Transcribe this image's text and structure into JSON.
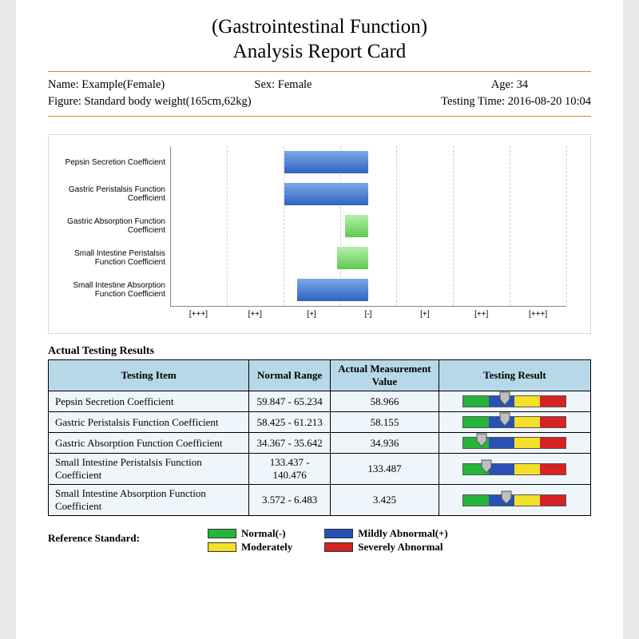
{
  "title_line1": "(Gastrointestinal Function)",
  "title_line2": "Analysis Report Card",
  "patient": {
    "name_label": "Name:",
    "name": "Example(Female)",
    "sex_label": "Sex:",
    "sex": "Female",
    "age_label": "Age:",
    "age": "34",
    "figure_label": "Figure:",
    "figure": "Standard body weight(165cm,62kg)",
    "testing_time_label": "Testing Time:",
    "testing_time": "2016-08-20 10:04"
  },
  "chart": {
    "x_ticks": [
      "[+++]",
      "[++]",
      "[+]",
      "[-]",
      "[+]",
      "[++]",
      "[+++]"
    ],
    "grid_color": "#cfcfcf",
    "bars": [
      {
        "label": "Pepsin Secretion Coefficient",
        "start_pct": 28.6,
        "width_pct": 21.4,
        "color_top": "#7aa8e6",
        "color_bot": "#2f63c2"
      },
      {
        "label": "Gastric Peristalsis Function Coefficient",
        "start_pct": 28.6,
        "width_pct": 21.4,
        "color_top": "#7aa8e6",
        "color_bot": "#2f63c2"
      },
      {
        "label": "Gastric Absorption Function Coefficient",
        "start_pct": 44,
        "width_pct": 6,
        "color_top": "#b4f0a8",
        "color_bot": "#5fc94f"
      },
      {
        "label": "Small Intestine Peristalsis Function Coefficient",
        "start_pct": 42,
        "width_pct": 8,
        "color_top": "#b4f0a8",
        "color_bot": "#5fc94f"
      },
      {
        "label": "Small Intestine Absorption Function Coefficient",
        "start_pct": 32,
        "width_pct": 18,
        "color_top": "#7aa8e6",
        "color_bot": "#2f63c2"
      }
    ]
  },
  "results": {
    "section_title": "Actual Testing Results",
    "headers": [
      "Testing Item",
      "Normal Range",
      "Actual Measurement Value",
      "Testing Result"
    ],
    "rows": [
      {
        "name": "Pepsin Secretion Coefficient",
        "range": "59.847 - 65.234",
        "value": "58.966",
        "marker_pct": 40
      },
      {
        "name": "Gastric Peristalsis Function Coefficient",
        "range": "58.425 - 61.213",
        "value": "58.155",
        "marker_pct": 40
      },
      {
        "name": "Gastric Absorption Function Coefficient",
        "range": "34.367 - 35.642",
        "value": "34.936",
        "marker_pct": 18
      },
      {
        "name": "Small Intestine Peristalsis Function Coefficient",
        "range": "133.437 - 140.476",
        "value": "133.487",
        "marker_pct": 22
      },
      {
        "name": "Small Intestine Absorption Function Coefficient",
        "range": "3.572 - 6.483",
        "value": "3.425",
        "marker_pct": 42
      }
    ],
    "indicator_colors": {
      "green": "#26b53a",
      "blue": "#2951b5",
      "yellow": "#f2e02a",
      "red": "#d62222"
    }
  },
  "legend": {
    "label": "Reference Standard:",
    "items_left": [
      {
        "color": "#26b53a",
        "text": "Normal(-)"
      },
      {
        "color": "#f2e02a",
        "text": "Moderately"
      }
    ],
    "items_right": [
      {
        "color": "#2951b5",
        "text": "Mildly Abnormal(+)"
      },
      {
        "color": "#d62222",
        "text": "Severely Abnormal"
      }
    ]
  }
}
